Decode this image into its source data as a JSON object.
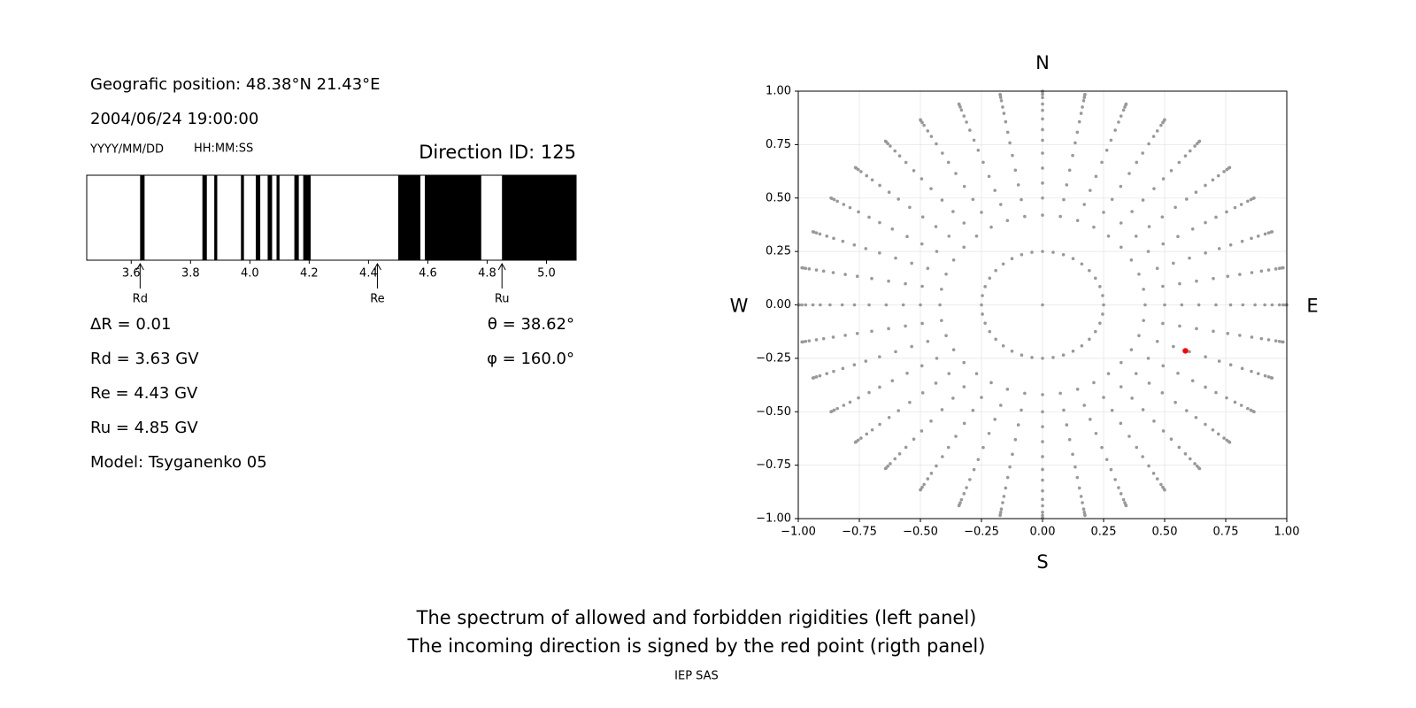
{
  "info": {
    "position": "Geografic position: 48.38°N 21.43°E",
    "datetime": "2004/06/24 19:00:00",
    "date_format": "YYYY/MM/DD",
    "time_format": "HH:MM:SS",
    "direction": "Direction ID: 125",
    "left_lines": [
      "ΔR = 0.01",
      "Rd = 3.63 GV",
      "Re = 4.43 GV",
      "Ru = 4.85 GV",
      "Model: Tsyganenko 05"
    ],
    "right_lines": [
      "θ = 38.62°",
      "φ = 160.0°"
    ]
  },
  "chart_data": [
    {
      "type": "spectrum",
      "xlim": [
        3.45,
        5.1
      ],
      "color": "#000000",
      "xticks": [
        3.6,
        3.8,
        {
          "value": 4,
          "label": "4.0"
        },
        4.2,
        4.4,
        4.6,
        4.8,
        {
          "value": 5,
          "label": "5.0"
        }
      ],
      "forbidden": [
        [
          3.63,
          3.645
        ],
        [
          3.84,
          3.855
        ],
        [
          3.88,
          3.89
        ],
        [
          3.97,
          3.98
        ],
        [
          4.02,
          4.035
        ],
        [
          4.06,
          4.075
        ],
        [
          4.09,
          4.1
        ],
        [
          4.15,
          4.165
        ],
        [
          4.18,
          4.205
        ],
        [
          4.5,
          4.575
        ],
        [
          4.59,
          4.78
        ],
        [
          4.85,
          5.1
        ]
      ],
      "markers": [
        {
          "label": "Rd",
          "value": 3.63
        },
        {
          "label": "Re",
          "value": 4.43
        },
        {
          "label": "Ru",
          "value": 4.85
        }
      ]
    },
    {
      "type": "skymap",
      "xlim": [
        -1,
        1
      ],
      "ylim": [
        -1,
        1
      ],
      "grid": true,
      "xticks": [
        {
          "value": -1,
          "label": "−1.00"
        },
        {
          "value": -0.75,
          "label": "−0.75"
        },
        {
          "value": -0.5,
          "label": "−0.50"
        },
        {
          "value": -0.25,
          "label": "−0.25"
        },
        {
          "value": 0,
          "label": "0.00"
        },
        {
          "value": 0.25,
          "label": "0.25"
        },
        {
          "value": 0.5,
          "label": "0.50"
        },
        {
          "value": 0.75,
          "label": "0.75"
        },
        {
          "value": 1,
          "label": "1.00"
        }
      ],
      "yticks": [
        {
          "value": -1,
          "label": "−1.00"
        },
        {
          "value": -0.75,
          "label": "−0.75"
        },
        {
          "value": -0.5,
          "label": "−0.50"
        },
        {
          "value": -0.25,
          "label": "−0.25"
        },
        {
          "value": 0,
          "label": "0.00"
        },
        {
          "value": 0.25,
          "label": "0.25"
        },
        {
          "value": 0.5,
          "label": "0.50"
        },
        {
          "value": 0.75,
          "label": "0.75"
        },
        {
          "value": 1,
          "label": "1.00"
        }
      ],
      "compass": {
        "top": "N",
        "bottom": "S",
        "left": "W",
        "right": "E"
      },
      "grid_points": {
        "color": "#999999",
        "azimuth": [
          0,
          10,
          20,
          30,
          40,
          50,
          60,
          70,
          80,
          90,
          100,
          110,
          120,
          130,
          140,
          150,
          160,
          170,
          180,
          190,
          200,
          210,
          220,
          230,
          240,
          250,
          260,
          270,
          280,
          290,
          300,
          310,
          320,
          330,
          340,
          350
        ],
        "radius": [
          0.25,
          0.42,
          0.5,
          0.57,
          0.64,
          0.71,
          0.77,
          0.82,
          0.87,
          0.91,
          0.94,
          0.97,
          0.985,
          0.996,
          1.0
        ]
      },
      "center": {
        "x": 0,
        "y": 0,
        "color": "#999999"
      },
      "series": [
        {
          "color": "#ff0000",
          "x": [
            0.585
          ],
          "y": [
            -0.215
          ]
        }
      ]
    }
  ],
  "caption": [
    "The spectrum of allowed and forbidden rigidities (left panel)",
    "The incoming direction is signed by the red point (rigth panel)"
  ],
  "footer": "IEP SAS"
}
